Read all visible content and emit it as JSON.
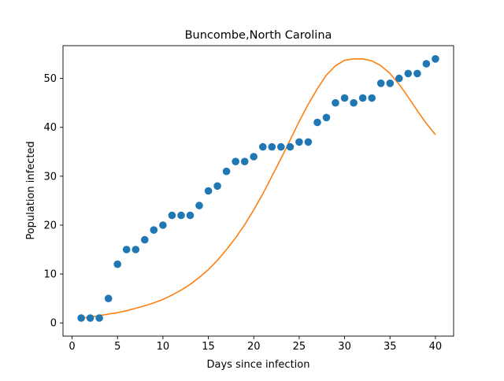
{
  "chart_data": {
    "type": "scatter",
    "title": "Buncombe,North Carolina",
    "xlabel": "Days since infection",
    "ylabel": "Population infected",
    "xlim": [
      -1,
      42
    ],
    "ylim": [
      -2.7,
      56.7
    ],
    "xticks": [
      0,
      5,
      10,
      15,
      20,
      25,
      30,
      35,
      40
    ],
    "yticks": [
      0,
      10,
      20,
      30,
      40,
      50
    ],
    "grid": false,
    "legend": "none",
    "series": [
      {
        "kind": "scatter",
        "color": "#1f77b4",
        "x": [
          1,
          2,
          3,
          4,
          5,
          6,
          7,
          8,
          9,
          10,
          11,
          12,
          13,
          14,
          15,
          16,
          17,
          18,
          19,
          20,
          21,
          22,
          23,
          24,
          25,
          26,
          27,
          28,
          29,
          30,
          31,
          32,
          33,
          34,
          35,
          36,
          37,
          38,
          39,
          40
        ],
        "y": [
          1,
          1,
          1,
          5,
          12,
          15,
          15,
          17,
          19,
          20,
          22,
          22,
          22,
          24,
          27,
          28,
          31,
          33,
          33,
          34,
          36,
          36,
          36,
          36,
          37,
          37,
          41,
          42,
          45,
          46,
          45,
          46,
          46,
          49,
          49,
          50,
          51,
          51,
          53,
          54
        ]
      },
      {
        "kind": "line",
        "color": "#ff7f0e",
        "x": [
          1,
          2,
          3,
          4,
          5,
          6,
          7,
          8,
          9,
          10,
          11,
          12,
          13,
          14,
          15,
          16,
          17,
          18,
          19,
          20,
          21,
          22,
          23,
          24,
          25,
          26,
          27,
          28,
          29,
          30,
          31,
          32,
          33,
          34,
          35,
          36,
          37,
          38,
          39,
          40
        ],
        "y": [
          1.0,
          1.2,
          1.5,
          1.8,
          2.1,
          2.5,
          3.0,
          3.5,
          4.1,
          4.8,
          5.7,
          6.7,
          7.9,
          9.3,
          10.9,
          12.8,
          15.0,
          17.4,
          20.1,
          23.1,
          26.4,
          30.0,
          33.6,
          37.4,
          41.2,
          44.7,
          47.9,
          50.7,
          52.6,
          53.7,
          54.0,
          54.0,
          53.6,
          52.6,
          51.0,
          48.8,
          46.2,
          43.4,
          40.8,
          38.5
        ]
      }
    ]
  }
}
